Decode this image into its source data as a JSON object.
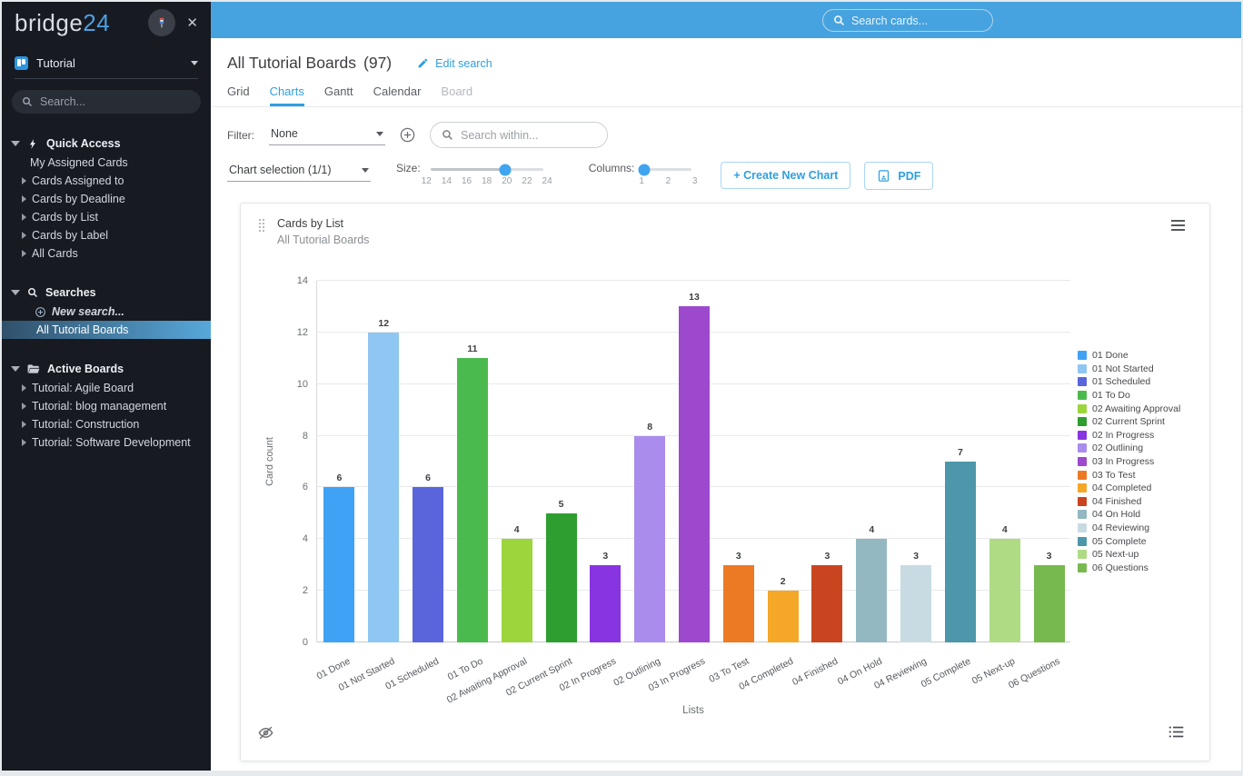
{
  "colors": {
    "topbar": "#47A3DF",
    "accent": "#2F9FE0",
    "sidebar_bg": "#171A21",
    "selected_gradient_start": "#30506A",
    "selected_gradient_end": "#57A8DB"
  },
  "sidebar": {
    "logo_text": "bridge",
    "logo_suffix": "24",
    "board_selector": {
      "label": "Tutorial"
    },
    "search_placeholder": "Search...",
    "sections": [
      {
        "label": "Quick Access",
        "icon": "bolt",
        "items": [
          {
            "label": "My Assigned Cards"
          },
          {
            "label": "Cards Assigned to",
            "arrow": true
          },
          {
            "label": "Cards by Deadline",
            "arrow": true
          },
          {
            "label": "Cards by List",
            "arrow": true
          },
          {
            "label": "Cards by Label",
            "arrow": true
          },
          {
            "label": "All Cards",
            "arrow": true
          }
        ]
      },
      {
        "label": "Searches",
        "icon": "search",
        "items": [
          {
            "label": "New search...",
            "icon": "plus-circle",
            "italic": true
          },
          {
            "label": "All Tutorial Boards",
            "selected": true
          }
        ]
      },
      {
        "label": "Active Boards",
        "icon": "folder",
        "items": [
          {
            "label": "Tutorial: Agile Board",
            "arrow": true
          },
          {
            "label": "Tutorial: blog management",
            "arrow": true
          },
          {
            "label": "Tutorial: Construction",
            "arrow": true
          },
          {
            "label": "Tutorial: Software Development",
            "arrow": true
          }
        ]
      }
    ]
  },
  "topbar": {
    "search_placeholder": "Search cards..."
  },
  "header": {
    "title": "All Tutorial Boards",
    "count": "(97)",
    "edit_search_label": "Edit search",
    "tabs": [
      {
        "label": "Grid"
      },
      {
        "label": "Charts",
        "active": true
      },
      {
        "label": "Gantt"
      },
      {
        "label": "Calendar"
      },
      {
        "label": "Board",
        "disabled": true
      }
    ]
  },
  "filter": {
    "label": "Filter:",
    "value": "None",
    "search_placeholder": "Search within..."
  },
  "controls": {
    "chart_selection_label": "Chart selection (1/1)",
    "size_label": "Size:",
    "size_ticks": [
      "12",
      "14",
      "16",
      "18",
      "20",
      "22",
      "24"
    ],
    "size_value": "20",
    "columns_label": "Columns:",
    "columns_ticks": [
      "1",
      "2",
      "3"
    ],
    "columns_value": "1",
    "create_button_label": "+ Create New Chart",
    "pdf_button_label": "PDF"
  },
  "chart_data": {
    "type": "bar",
    "title": "Cards by List",
    "subtitle": "All Tutorial Boards",
    "xlabel": "Lists",
    "ylabel": "Card count",
    "ylim": [
      0,
      14
    ],
    "yticks": [
      0,
      2,
      4,
      6,
      8,
      10,
      12,
      14
    ],
    "grid": true,
    "legend_position": "right",
    "categories": [
      "01 Done",
      "01 Not Started",
      "01 Scheduled",
      "01 To Do",
      "02 Awaiting Approval",
      "02 Current Sprint",
      "02 In Progress",
      "02 Outlining",
      "03 In Progress",
      "03 To Test",
      "04 Completed",
      "04 Finished",
      "04 On Hold",
      "04 Reviewing",
      "05 Complete",
      "05 Next-up",
      "06 Questions"
    ],
    "values": [
      6,
      12,
      6,
      11,
      4,
      5,
      3,
      8,
      13,
      3,
      2,
      3,
      4,
      3,
      7,
      4,
      3
    ],
    "bar_colors": [
      "#3FA2F4",
      "#8FC6F2",
      "#5A65DC",
      "#4BBA4E",
      "#9CD53C",
      "#2E9E30",
      "#8834E0",
      "#A98CEC",
      "#9D49CE",
      "#EC7A24",
      "#F5A727",
      "#C9451F",
      "#93B8C2",
      "#C8DBE3",
      "#4E96AA",
      "#AFDB85",
      "#77B94E"
    ]
  }
}
